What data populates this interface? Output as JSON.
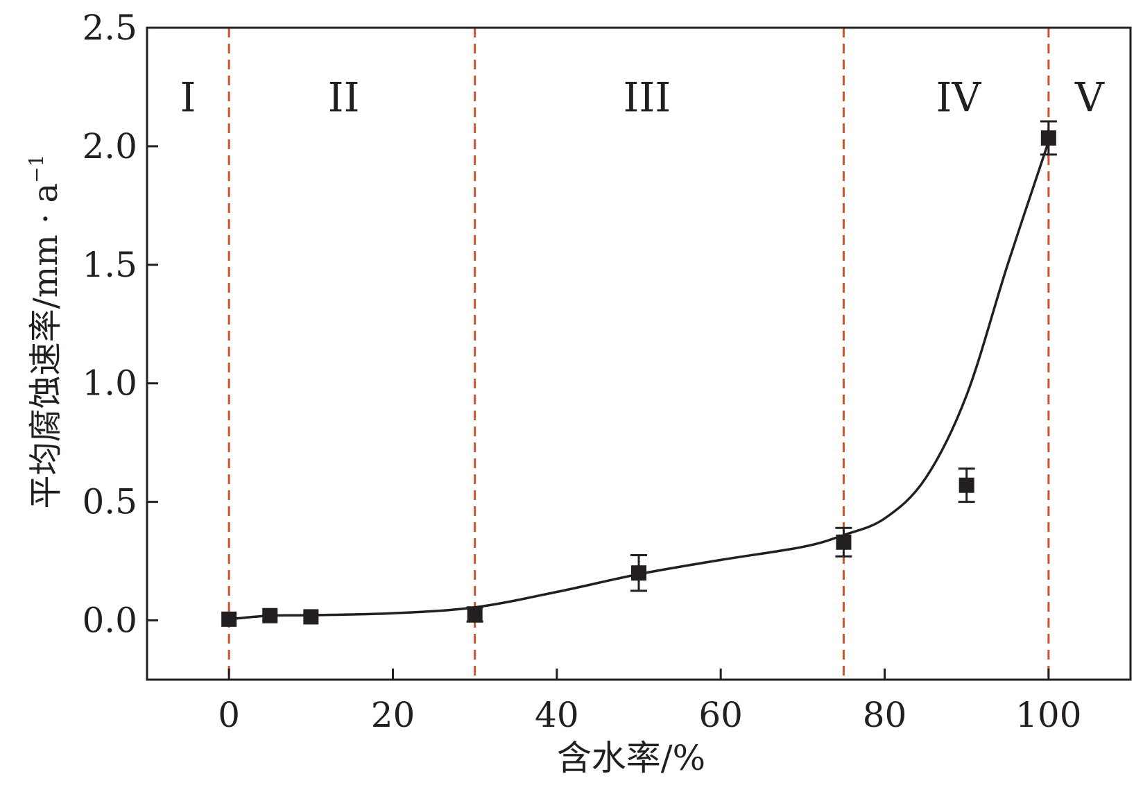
{
  "chart_data": {
    "type": "scatter",
    "xlabel": "含水率/%",
    "ylabel_main": "平均腐蚀速率/mm · a",
    "ylabel_sup": "−1",
    "xlim": [
      -10,
      110
    ],
    "ylim": [
      -0.25,
      2.5
    ],
    "x_ticks": [
      0,
      20,
      40,
      60,
      80,
      100
    ],
    "x_tick_labels": [
      "0",
      "20",
      "40",
      "60",
      "80",
      "100"
    ],
    "y_ticks": [
      0.0,
      0.5,
      1.0,
      1.5,
      2.0,
      2.5
    ],
    "y_tick_labels": [
      "0.0",
      "0.5",
      "1.0",
      "1.5",
      "2.0",
      "2.5"
    ],
    "grid": false,
    "points": [
      {
        "x": 0,
        "y": 0.005,
        "err": 0
      },
      {
        "x": 5,
        "y": 0.02,
        "err": 0
      },
      {
        "x": 10,
        "y": 0.015,
        "err": 0
      },
      {
        "x": 30,
        "y": 0.025,
        "err": 0.03
      },
      {
        "x": 50,
        "y": 0.2,
        "err": 0.075
      },
      {
        "x": 75,
        "y": 0.33,
        "err": 0.06
      },
      {
        "x": 90,
        "y": 0.57,
        "err": 0.07
      },
      {
        "x": 100,
        "y": 2.035,
        "err": 0.07
      }
    ],
    "fit_curve": [
      [
        0,
        0.005
      ],
      [
        5,
        0.02
      ],
      [
        10,
        0.022
      ],
      [
        20,
        0.03
      ],
      [
        30,
        0.055
      ],
      [
        40,
        0.12
      ],
      [
        50,
        0.195
      ],
      [
        60,
        0.255
      ],
      [
        70,
        0.31
      ],
      [
        75,
        0.36
      ],
      [
        80,
        0.43
      ],
      [
        85,
        0.6
      ],
      [
        90,
        0.95
      ],
      [
        95,
        1.5
      ],
      [
        100,
        2.02
      ]
    ],
    "regions": {
      "boundaries": [
        0,
        30,
        75,
        100
      ],
      "labels": [
        {
          "text": "I",
          "x": -5
        },
        {
          "text": "II",
          "x": 14
        },
        {
          "text": "III",
          "x": 51
        },
        {
          "text": "IV",
          "x": 89
        },
        {
          "text": "V",
          "x": 105
        }
      ],
      "label_y": 2.2
    },
    "colors": {
      "axis": "#231f20",
      "points": "#231f20",
      "fit": "#231f20",
      "boundary": "#d0522b"
    }
  }
}
